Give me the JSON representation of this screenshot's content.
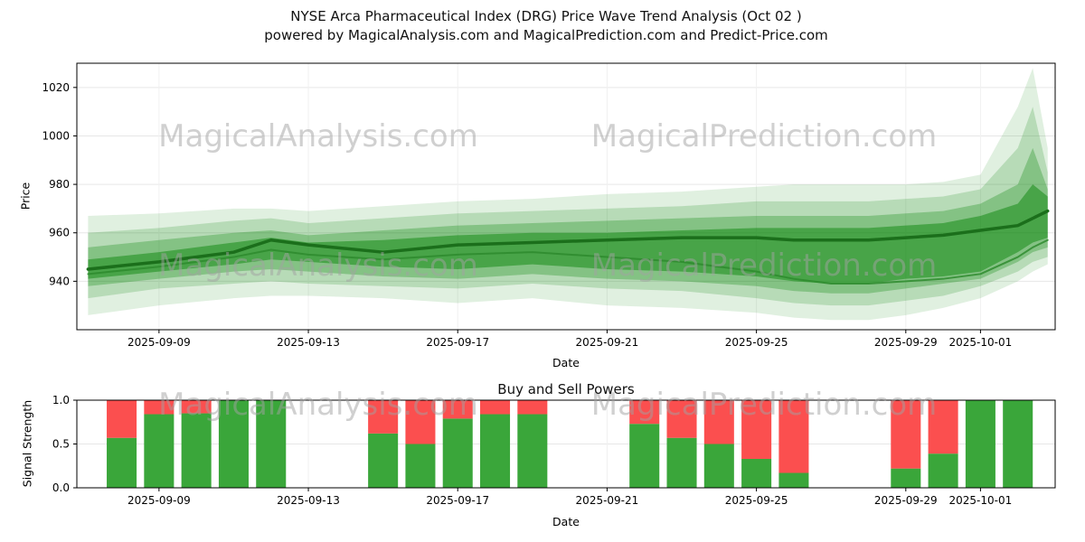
{
  "title": {
    "line1": "NYSE Arca Pharmaceutical Index (DRG) Price Wave Trend Analysis (Oct 02 )",
    "line2": "powered by MagicalAnalysis.com and MagicalPrediction.com and Predict-Price.com"
  },
  "watermarks": {
    "analysis": "MagicalAnalysis.com",
    "prediction": "MagicalPrediction.com"
  },
  "chart_data": [
    {
      "type": "area",
      "name": "price-wave-trend",
      "ylabel": "Price",
      "xlabel": "Date",
      "ylim": [
        920,
        1030
      ],
      "xlim": [
        -0.2,
        26
      ],
      "x_ticks": [
        {
          "x": 2,
          "label": "2025-09-09"
        },
        {
          "x": 6,
          "label": "2025-09-13"
        },
        {
          "x": 10,
          "label": "2025-09-17"
        },
        {
          "x": 14,
          "label": "2025-09-21"
        },
        {
          "x": 18,
          "label": "2025-09-25"
        },
        {
          "x": 22,
          "label": "2025-09-29"
        },
        {
          "x": 24,
          "label": "2025-10-01"
        }
      ],
      "y_ticks": [
        {
          "v": 940,
          "label": "940"
        },
        {
          "v": 960,
          "label": "960"
        },
        {
          "v": 980,
          "label": "980"
        },
        {
          "v": 1000,
          "label": "1000"
        },
        {
          "v": 1020,
          "label": "1020"
        }
      ],
      "band_color": "#008000",
      "x": [
        0.1,
        2,
        4,
        5,
        6,
        8,
        10,
        12,
        14,
        16,
        18,
        19,
        20,
        21,
        22,
        23,
        24,
        25,
        25.4,
        25.8
      ],
      "bands": [
        {
          "opacity": 0.12,
          "low": [
            926,
            930,
            933,
            934,
            934,
            933,
            931,
            933,
            930,
            929,
            927,
            925,
            924,
            924,
            926,
            929,
            933,
            940,
            944,
            947
          ],
          "high": [
            967,
            968,
            970,
            970,
            969,
            971,
            973,
            974,
            976,
            977,
            979,
            980,
            980,
            980,
            980,
            981,
            984,
            1012,
            1028,
            995
          ]
        },
        {
          "opacity": 0.18,
          "low": [
            933,
            937,
            939,
            940,
            939,
            938,
            937,
            939,
            937,
            936,
            933,
            931,
            930,
            930,
            932,
            934,
            938,
            944,
            948,
            950
          ],
          "high": [
            960,
            962,
            965,
            966,
            964,
            966,
            968,
            969,
            970,
            971,
            973,
            973,
            973,
            973,
            974,
            975,
            978,
            995,
            1012,
            985
          ]
        },
        {
          "opacity": 0.28,
          "low": [
            938,
            941,
            944,
            945,
            944,
            942,
            941,
            943,
            941,
            940,
            938,
            936,
            935,
            935,
            937,
            939,
            941,
            948,
            952,
            954
          ],
          "high": [
            954,
            957,
            960,
            961,
            959,
            961,
            963,
            964,
            965,
            966,
            967,
            967,
            967,
            967,
            968,
            969,
            972,
            980,
            995,
            978
          ]
        },
        {
          "opacity": 0.45,
          "low": [
            941,
            944,
            947,
            949,
            948,
            946,
            945,
            947,
            945,
            944,
            942,
            940,
            939,
            939,
            941,
            942,
            944,
            952,
            956,
            958
          ],
          "high": [
            949,
            952,
            956,
            958,
            956,
            957,
            959,
            960,
            960,
            961,
            962,
            962,
            962,
            962,
            963,
            964,
            967,
            972,
            980,
            975
          ]
        }
      ],
      "lines": [
        {
          "color": "#1b6f1b",
          "width": 3.5,
          "opacity": 1,
          "y": [
            945,
            948,
            952,
            957,
            955,
            952,
            955,
            956,
            957,
            958,
            958,
            957,
            957,
            957,
            958,
            959,
            961,
            963,
            966,
            969
          ]
        },
        {
          "color": "#2e8b2e",
          "width": 2,
          "opacity": 0.85,
          "y": [
            943,
            946,
            950,
            953,
            951,
            949,
            951,
            952,
            950,
            948,
            944,
            941,
            939,
            939,
            940,
            941,
            943,
            950,
            954,
            957
          ]
        }
      ]
    },
    {
      "type": "bar",
      "name": "buy-sell-powers",
      "title": "Buy and Sell Powers",
      "ylabel": "Signal Strength",
      "xlabel": "Date",
      "ylim": [
        0,
        1
      ],
      "xlim": [
        -0.2,
        26
      ],
      "x_ticks": [
        {
          "x": 2,
          "label": "2025-09-09"
        },
        {
          "x": 6,
          "label": "2025-09-13"
        },
        {
          "x": 10,
          "label": "2025-09-17"
        },
        {
          "x": 14,
          "label": "2025-09-21"
        },
        {
          "x": 18,
          "label": "2025-09-25"
        },
        {
          "x": 22,
          "label": "2025-09-29"
        },
        {
          "x": 24,
          "label": "2025-10-01"
        }
      ],
      "y_ticks": [
        {
          "v": 0,
          "label": "0.0"
        },
        {
          "v": 0.5,
          "label": "0.5"
        },
        {
          "v": 1,
          "label": "1.0"
        }
      ],
      "bar_width": 0.8,
      "colors": {
        "buy": "#3aa63a",
        "sell": "#fb4f4f"
      },
      "bars": [
        {
          "x": 1,
          "date": "2025-09-08",
          "buy": 0.57,
          "sell": 0.43
        },
        {
          "x": 2,
          "date": "2025-09-09",
          "buy": 0.84,
          "sell": 0.16
        },
        {
          "x": 3,
          "date": "2025-09-10",
          "buy": 0.85,
          "sell": 0.15
        },
        {
          "x": 4,
          "date": "2025-09-11",
          "buy": 1.0,
          "sell": 0.0
        },
        {
          "x": 5,
          "date": "2025-09-12",
          "buy": 1.0,
          "sell": 0.0
        },
        {
          "x": 8,
          "date": "2025-09-15",
          "buy": 0.62,
          "sell": 0.38
        },
        {
          "x": 9,
          "date": "2025-09-16",
          "buy": 0.5,
          "sell": 0.5
        },
        {
          "x": 10,
          "date": "2025-09-17",
          "buy": 0.79,
          "sell": 0.21
        },
        {
          "x": 11,
          "date": "2025-09-18",
          "buy": 0.84,
          "sell": 0.16
        },
        {
          "x": 12,
          "date": "2025-09-19",
          "buy": 0.84,
          "sell": 0.16
        },
        {
          "x": 15,
          "date": "2025-09-22",
          "buy": 0.73,
          "sell": 0.27
        },
        {
          "x": 16,
          "date": "2025-09-23",
          "buy": 0.57,
          "sell": 0.43
        },
        {
          "x": 17,
          "date": "2025-09-24",
          "buy": 0.5,
          "sell": 0.5
        },
        {
          "x": 18,
          "date": "2025-09-25",
          "buy": 0.33,
          "sell": 0.67
        },
        {
          "x": 19,
          "date": "2025-09-26",
          "buy": 0.17,
          "sell": 0.83
        },
        {
          "x": 22,
          "date": "2025-09-29",
          "buy": 0.22,
          "sell": 0.78
        },
        {
          "x": 23,
          "date": "2025-09-30",
          "buy": 0.39,
          "sell": 0.61
        },
        {
          "x": 24,
          "date": "2025-10-01",
          "buy": 1.0,
          "sell": 0.0
        },
        {
          "x": 25,
          "date": "2025-10-02",
          "buy": 1.0,
          "sell": 0.0
        }
      ]
    }
  ]
}
